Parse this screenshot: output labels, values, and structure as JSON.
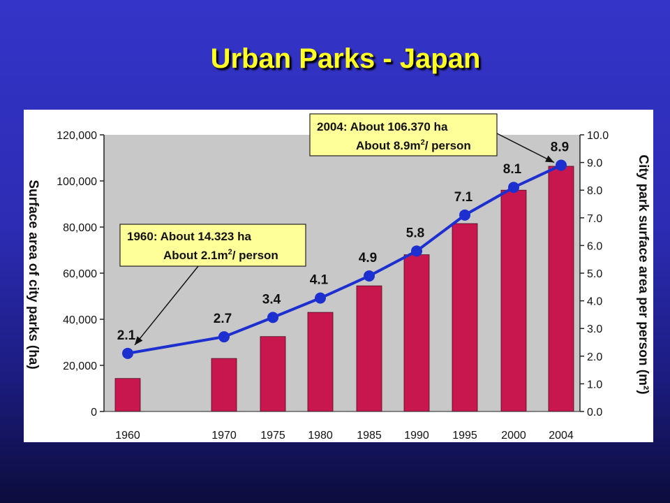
{
  "slide": {
    "title": "Urban Parks - Japan"
  },
  "colors": {
    "background": "#2c2cb4",
    "title": "#ffff22",
    "plot_area": "#c8c8c8",
    "bar": "#c8174f",
    "line": "#1e2fd0",
    "callout_fill": "#ffff99"
  },
  "chart_data": {
    "type": "bar",
    "categories": [
      "1960",
      "1970",
      "1975",
      "1980",
      "1985",
      "1990",
      "1995",
      "2000",
      "2004"
    ],
    "series": [
      {
        "axis": "left",
        "type": "bar",
        "values": [
          14323,
          23000,
          32500,
          43000,
          54500,
          68000,
          81500,
          96000,
          106370
        ]
      },
      {
        "axis": "right",
        "type": "line",
        "values": [
          2.1,
          2.7,
          3.4,
          4.1,
          4.9,
          5.8,
          7.1,
          8.1,
          8.9
        ],
        "labels": [
          "2.1",
          "2.7",
          "3.4",
          "4.1",
          "4.9",
          "5.8",
          "7.1",
          "8.1",
          "8.9"
        ]
      }
    ],
    "ylabel": "Surface area of city parks (ha)",
    "y2label": "City park surface area per person (m²)",
    "ylim": [
      0,
      120000
    ],
    "y2lim": [
      0,
      10
    ],
    "yticks": [
      "0",
      "20,000",
      "40,000",
      "60,000",
      "80,000",
      "100,000",
      "120,000"
    ],
    "y2ticks": [
      "0.0",
      "1.0",
      "2.0",
      "3.0",
      "4.0",
      "5.0",
      "6.0",
      "7.0",
      "8.0",
      "9.0",
      "10.0"
    ],
    "annotations": [
      {
        "category": "1960",
        "line1": "1960: About 14.323 ha",
        "line2_pre": "About 2.1m",
        "line2_sup": "2",
        "line2_post": "/ person"
      },
      {
        "category": "2004",
        "line1": "2004: About 106.370 ha",
        "line2_pre": "About 8.9m",
        "line2_sup": "2",
        "line2_post": "/ person"
      }
    ],
    "grid": false
  }
}
